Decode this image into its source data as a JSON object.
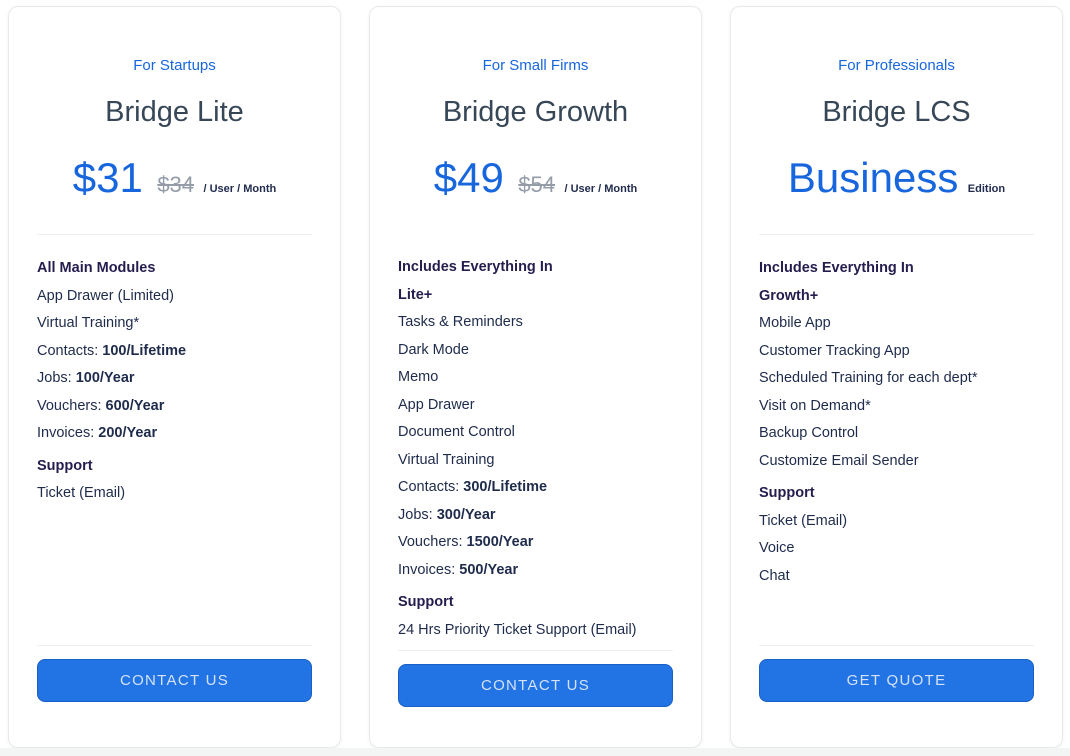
{
  "colors": {
    "accent": "#1766dd",
    "title": "#374757",
    "text": "#1e2b4b",
    "heading": "#241d4e",
    "old-price": "#949ca8",
    "button-bg": "#2273e3",
    "button-border": "#1a5fc4",
    "button-text": "#d4e3f8",
    "card-border": "#e9e9e9",
    "divider": "#efefef",
    "strip": "#f3f4f4",
    "page-bg": "#ffffff"
  },
  "cards": [
    {
      "tagline": "For Startups",
      "title": "Bridge Lite",
      "price": {
        "current": "$31",
        "original": "$34",
        "unit": "/ User / Month"
      },
      "features": [
        {
          "text": "All Main Modules",
          "heading": true
        },
        {
          "text": "App Drawer (Limited)"
        },
        {
          "text": "Virtual Training*"
        },
        {
          "label": "Contacts: ",
          "value": "100/Lifetime"
        },
        {
          "label": "Jobs: ",
          "value": "100/Year"
        },
        {
          "label": "Vouchers: ",
          "value": "600/Year"
        },
        {
          "label": "Invoices: ",
          "value": "200/Year"
        },
        {
          "text": "Support",
          "heading": true,
          "gap": true
        },
        {
          "text": "Ticket (Email)"
        }
      ],
      "button": "CONTACT US"
    },
    {
      "tagline": "For Small Firms",
      "title": "Bridge Growth",
      "price": {
        "current": "$49",
        "original": "$54",
        "unit": "/ User / Month"
      },
      "features": [
        {
          "text": "Includes Everything In",
          "heading": true
        },
        {
          "text": "Lite+",
          "heading": true
        },
        {
          "text": "Tasks & Reminders"
        },
        {
          "text": "Dark Mode"
        },
        {
          "text": "Memo"
        },
        {
          "text": "App Drawer"
        },
        {
          "text": "Document Control"
        },
        {
          "text": "Virtual Training"
        },
        {
          "label": "Contacts: ",
          "value": "300/Lifetime"
        },
        {
          "label": "Jobs: ",
          "value": "300/Year"
        },
        {
          "label": "Vouchers: ",
          "value": "1500/Year"
        },
        {
          "label": "Invoices: ",
          "value": "500/Year"
        },
        {
          "text": "Support",
          "heading": true,
          "gap": true
        },
        {
          "text": "24 Hrs Priority Ticket Support (Email)"
        }
      ],
      "button": "CONTACT US"
    },
    {
      "tagline": "For Professionals",
      "title": "Bridge LCS",
      "price": {
        "current": "Business",
        "unit": "Edition"
      },
      "features": [
        {
          "text": "Includes Everything In",
          "heading": true
        },
        {
          "text": "Growth+",
          "heading": true
        },
        {
          "text": "Mobile App"
        },
        {
          "text": "Customer Tracking App"
        },
        {
          "text": "Scheduled Training for each dept*"
        },
        {
          "text": "Visit on Demand*"
        },
        {
          "text": "Backup Control"
        },
        {
          "text": "Customize Email Sender"
        },
        {
          "text": "Support",
          "heading": true,
          "gap": true
        },
        {
          "text": "Ticket (Email)"
        },
        {
          "text": "Voice"
        },
        {
          "text": "Chat"
        }
      ],
      "button": "GET QUOTE"
    }
  ]
}
